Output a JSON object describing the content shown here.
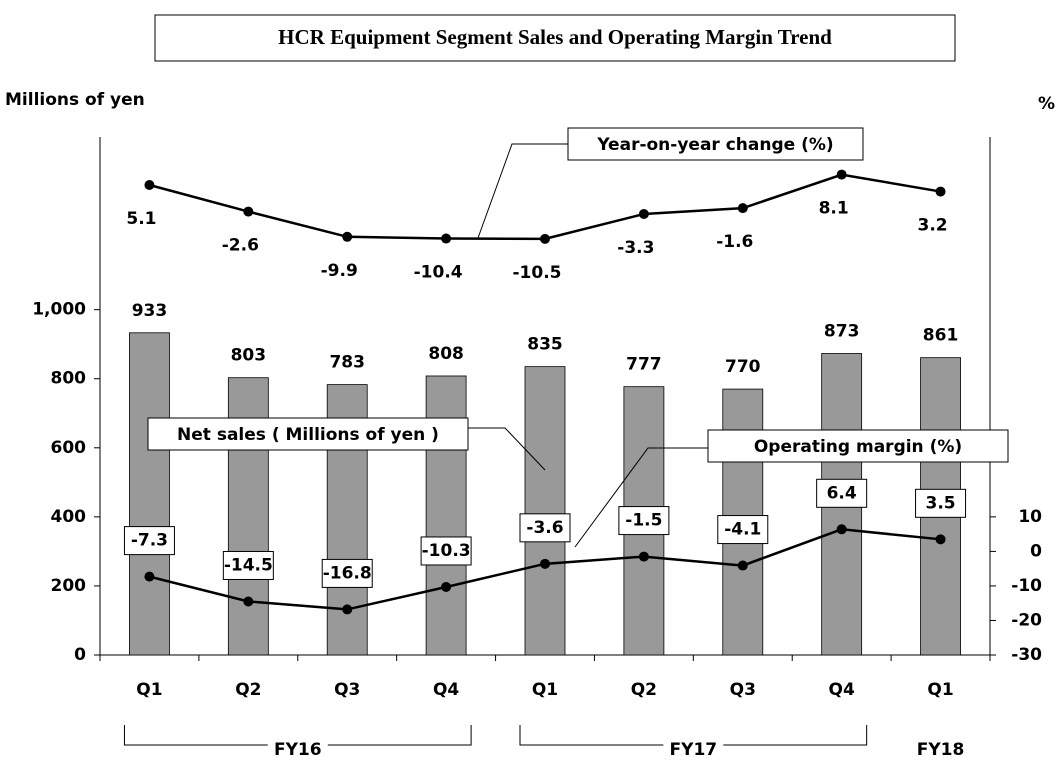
{
  "chart_data": {
    "type": "bar_line",
    "title": "HCR Equipment Segment Sales and Operating Margin Trend",
    "y_label": "Millions of yen",
    "y2_label": "%",
    "categories": [
      "Q1",
      "Q2",
      "Q3",
      "Q4",
      "Q1",
      "Q2",
      "Q3",
      "Q4",
      "Q1"
    ],
    "groups": [
      "FY16",
      "FY17",
      "FY18"
    ],
    "series": [
      {
        "name": "Net sales ( Millions of yen )",
        "type": "bar",
        "color": "#999999",
        "values": [
          933,
          803,
          783,
          808,
          835,
          777,
          770,
          873,
          861
        ]
      },
      {
        "name": "Operating margin (%)",
        "type": "line",
        "axis": "y2",
        "color": "#000000",
        "values": [
          -7.3,
          -14.5,
          -16.8,
          -10.3,
          -3.6,
          -1.5,
          -4.1,
          6.4,
          3.5
        ]
      },
      {
        "name": "Year-on-year change (%)",
        "type": "line",
        "axis": "y3",
        "color": "#000000",
        "values": [
          5.1,
          -2.6,
          -9.9,
          -10.4,
          -10.5,
          -3.3,
          -1.6,
          8.1,
          3.2
        ]
      }
    ],
    "ylim": [
      0,
      1500
    ],
    "yticks": [
      0,
      200,
      400,
      600,
      800,
      {
        "value": 1000,
        "label": "1,000"
      }
    ],
    "y2lim": [
      -30,
      120
    ],
    "y2ticks": [
      -30,
      -20,
      -10,
      0,
      10
    ],
    "y3lim": [
      -131,
      19
    ]
  }
}
